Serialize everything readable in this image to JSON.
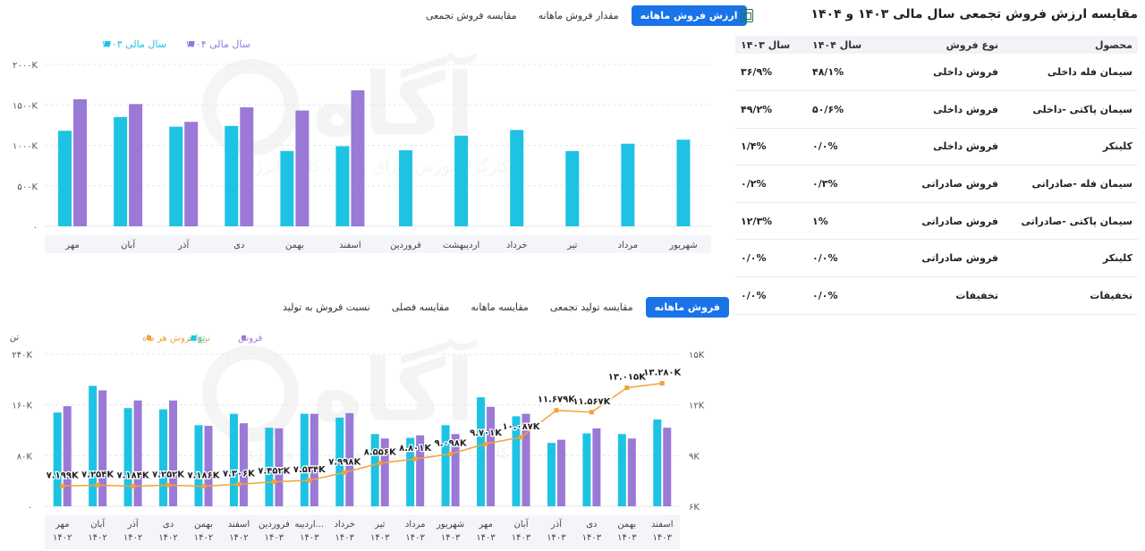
{
  "top_tabs": [
    {
      "label": "ارزش فروش ماهانه",
      "active": true
    },
    {
      "label": "مقدار فروش ماهانه",
      "active": false
    },
    {
      "label": "مقایسه فروش تجمعی",
      "active": false
    }
  ],
  "bottom_tabs": [
    {
      "label": "فروش ماهانه",
      "active": true
    },
    {
      "label": "مقایسه تولید تجمعی",
      "active": false
    },
    {
      "label": "مقایسه ماهانه",
      "active": false
    },
    {
      "label": "مقایسه فصلی",
      "active": false
    },
    {
      "label": "نسبت فروش به تولید",
      "active": false
    }
  ],
  "watermark": {
    "brand": "آگاه",
    "tagline": "کارگزار بورس اوراق بهادار، کالا و انرژی"
  },
  "table": {
    "title": "مقایسه ارزش فروش تجمعی سال مالی ۱۴۰۳ و ۱۴۰۴",
    "headers": {
      "product": "محصول",
      "type": "نوع فروش",
      "y1404": "سال ۱۴۰۴",
      "y1403": "سال ۱۴۰۳"
    },
    "rows": [
      {
        "product": "سیمان فله داخلی",
        "type": "فروش داخلی",
        "y1404": "۴۸/۱%",
        "y1403": "۳۶/۹%"
      },
      {
        "product": "سیمان پاکتی -داخلی",
        "type": "فروش داخلی",
        "y1404": "۵۰/۶%",
        "y1403": "۴۹/۲%"
      },
      {
        "product": "کلینکر",
        "type": "فروش داخلی",
        "y1404": "۰/۰%",
        "y1403": "۱/۴%"
      },
      {
        "product": "سیمان فله -صادراتی",
        "type": "فروش صادراتی",
        "y1404": "۰/۳%",
        "y1403": "۰/۲%"
      },
      {
        "product": "سیمان پاکتی -صادراتی",
        "type": "فروش صادراتی",
        "y1404": "۱%",
        "y1403": "۱۲/۳%"
      },
      {
        "product": "کلینکر",
        "type": "فروش صادراتی",
        "y1404": "۰/۰%",
        "y1403": "۰/۰%"
      },
      {
        "product": "تخفیفات",
        "type": "تخفیفات",
        "y1404": "۰/۰%",
        "y1403": "۰/۰%"
      }
    ]
  },
  "colors": {
    "cyan": "#1ec3e3",
    "purple": "#9b79d6",
    "orange": "#f2a33a",
    "active_tab": "#1a73e8"
  },
  "chart_data": [
    {
      "type": "bar",
      "categories": [
        "مهر",
        "آبان",
        "آذر",
        "دی",
        "بهمن",
        "اسفند",
        "فروردین",
        "اردیبهشت",
        "خرداد",
        "تیر",
        "مرداد",
        "شهریور"
      ],
      "series": [
        {
          "name": "سال مالی ۱۴۰۳",
          "color": "#1ec3e3",
          "values": [
            1180,
            1350,
            1230,
            1240,
            930,
            990,
            940,
            1120,
            1190,
            930,
            1020,
            1070
          ]
        },
        {
          "name": "سال مالی ۱۴۰۴",
          "color": "#9b79d6",
          "values": [
            1570,
            1510,
            1290,
            1470,
            1430,
            1680,
            null,
            null,
            null,
            null,
            null,
            null
          ]
        }
      ],
      "yticks": [
        "۰",
        "۵۰۰K",
        "۱۰۰۰K",
        "۱۵۰۰K",
        "۲۰۰۰K"
      ],
      "ylim": [
        0,
        2000
      ],
      "grid": true,
      "legend": "top-left"
    },
    {
      "type": "bar",
      "unit_label": "تن",
      "categories": [
        [
          "مهر",
          "۱۴۰۲"
        ],
        [
          "آبان",
          "۱۴۰۲"
        ],
        [
          "آذر",
          "۱۴۰۲"
        ],
        [
          "دی",
          "۱۴۰۲"
        ],
        [
          "بهمن",
          "۱۴۰۲"
        ],
        [
          "اسفند",
          "۱۴۰۲"
        ],
        [
          "فروردین",
          "۱۴۰۳"
        ],
        [
          "اردیبه...",
          "۱۴۰۳"
        ],
        [
          "خرداد",
          "۱۴۰۳"
        ],
        [
          "تیر",
          "۱۴۰۳"
        ],
        [
          "مرداد",
          "۱۴۰۳"
        ],
        [
          "شهریور",
          "۱۴۰۳"
        ],
        [
          "مهر",
          "۱۴۰۳"
        ],
        [
          "آبان",
          "۱۴۰۳"
        ],
        [
          "آذر",
          "۱۴۰۳"
        ],
        [
          "دی",
          "۱۴۰۳"
        ],
        [
          "بهمن",
          "۱۴۰۳"
        ],
        [
          "اسفند",
          "۱۴۰۳"
        ]
      ],
      "series": [
        {
          "name": "تولید",
          "color": "#1ec3e3",
          "axis": "left",
          "values": [
            148,
            190,
            155,
            153,
            128,
            146,
            124,
            146,
            140,
            114,
            108,
            128,
            172,
            142,
            100,
            115,
            114,
            137
          ]
        },
        {
          "name": "فروش",
          "color": "#9b79d6",
          "axis": "left",
          "values": [
            158,
            183,
            167,
            167,
            127,
            131,
            123,
            146,
            147,
            107,
            112,
            114,
            157,
            146,
            105,
            123,
            107,
            124
          ]
        },
        {
          "name": "نرخ فروش هر ماه",
          "color": "#f2a33a",
          "type": "line",
          "axis": "right",
          "values": [
            7199,
            7254,
            7184,
            7252,
            7186,
            7306,
            7452,
            7534,
            7998,
            8556,
            8801,
            9098,
            9701,
            10087,
            11679,
            11567,
            13015,
            13280
          ],
          "labels": [
            "۷.۱۹۹K",
            "۷.۲۵۴K",
            "۷.۱۸۴K",
            "۷.۲۵۲K",
            "۷.۱۸۶K",
            "۷.۳۰۶K",
            "۷.۴۵۲K",
            "۷.۵۳۴K",
            "۷.۹۹۸K",
            "۸.۵۵۶K",
            "۸.۸۰۱K",
            "۹.۰۹۸K",
            "۹.۷۰۱K",
            "۱۰.۰۸۷K",
            "۱۱.۶۷۹K",
            "۱۱.۵۶۷K",
            "۱۳.۰۱۵K",
            "۱۳.۲۸۰K"
          ]
        }
      ],
      "yticks_left": [
        "۰",
        "۸۰K",
        "۱۶۰K",
        "۲۴۰K"
      ],
      "ylim_left": [
        0,
        240
      ],
      "yticks_right": [
        "۶K",
        "۹K",
        "۱۲K",
        "۱۵K"
      ],
      "ylim_right": [
        6000,
        15000
      ],
      "legend": "top"
    }
  ]
}
